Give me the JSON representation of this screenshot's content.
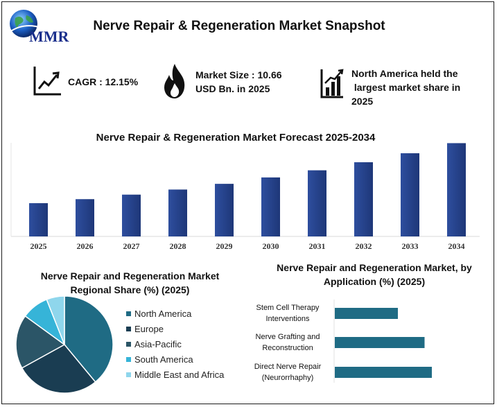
{
  "header": {
    "logo_text": "MMR",
    "title": "Nerve Repair & Regeneration Market Snapshot"
  },
  "kpis": {
    "cagr": {
      "icon": "trend-up-icon",
      "lines": [
        "CAGR : 12.15%"
      ]
    },
    "market_size": {
      "icon": "flame-icon",
      "lines": [
        "Market Size : 10.66",
        "USD Bn. in 2025"
      ]
    },
    "region": {
      "icon": "bar-growth-icon",
      "lines": [
        "North America held the",
        " largest market share in",
        "2025"
      ]
    }
  },
  "colors": {
    "bar": "#2e4e9e",
    "bar_dark": "#1e3778",
    "teal": "#1f6b84",
    "navy": "#1a3d52",
    "slate": "#2b5567",
    "sky": "#36b4d8",
    "pale_sky": "#8fd6ec"
  },
  "chart_data": [
    {
      "type": "bar",
      "title": "Nerve Repair & Regeneration Market Forecast 2025-2034",
      "categories": [
        "2025",
        "2026",
        "2027",
        "2028",
        "2029",
        "2030",
        "2031",
        "2032",
        "2033",
        "2034"
      ],
      "values": [
        10.66,
        11.95,
        13.4,
        15.03,
        16.86,
        18.91,
        21.2,
        23.78,
        26.66,
        29.9
      ],
      "ylim": [
        0,
        30
      ],
      "grid": false,
      "xlabel": "",
      "ylabel": ""
    },
    {
      "type": "pie",
      "title": "Nerve Repair and Regeneration Market Regional Share (%) (2025)",
      "labels": [
        "North America",
        "Europe",
        "Asia-Pacific",
        "South America",
        "Middle East and Africa"
      ],
      "values": [
        39,
        28,
        18,
        9,
        6
      ],
      "colors": [
        "#1f6b84",
        "#1a3d52",
        "#2b5567",
        "#36b4d8",
        "#8fd6ec"
      ],
      "legend": "right"
    },
    {
      "type": "bar",
      "orientation": "horizontal",
      "title": "Nerve Repair and Regeneration Market, by Application (%) (2025)",
      "categories": [
        "Stem Cell Therapy Interventions",
        "Nerve Grafting and Reconstruction",
        "Direct Nerve Repair (Neurorrhaphy)"
      ],
      "category_lines": [
        [
          "Stem Cell Therapy",
          "Interventions"
        ],
        [
          "Nerve Grafting and",
          "Reconstruction"
        ],
        [
          "Direct Nerve Repair",
          "(Neurorrhaphy)"
        ]
      ],
      "values": [
        26,
        37,
        40
      ],
      "xlim": [
        0,
        40
      ],
      "grid": false
    }
  ]
}
